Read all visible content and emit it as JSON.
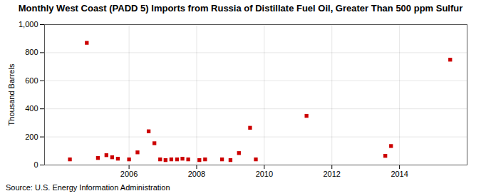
{
  "chart_data": {
    "type": "scatter",
    "title": "Monthly West Coast (PADD 5) Imports from Russia of Distillate Fuel Oil, Greater Than 500 ppm Sulfur",
    "ylabel": "Thousand Barrels",
    "annotations": [
      "Source: U.S. Energy Information Administration"
    ],
    "color": "#cc0000",
    "marker": "square",
    "grid": true,
    "xlim": [
      2003.5,
      2016.0
    ],
    "xticks": [
      2006,
      2008,
      2010,
      2012,
      2014
    ],
    "ylim": [
      0,
      1000
    ],
    "yticks": [
      0,
      200,
      400,
      600,
      800,
      {
        "value": 1000,
        "label": "1,000"
      }
    ],
    "x": [
      2004.25,
      2004.75,
      2005.08,
      2005.33,
      2005.5,
      2005.67,
      2006.0,
      2006.25,
      2006.58,
      2006.75,
      2006.92,
      2007.08,
      2007.25,
      2007.42,
      2007.58,
      2007.75,
      2008.08,
      2008.25,
      2008.75,
      2009.0,
      2009.25,
      2009.58,
      2009.75,
      2011.25,
      2013.58,
      2013.75,
      2015.5
    ],
    "values": [
      40,
      870,
      50,
      70,
      55,
      45,
      40,
      90,
      240,
      155,
      40,
      35,
      40,
      40,
      45,
      40,
      35,
      40,
      40,
      35,
      85,
      265,
      40,
      350,
      65,
      135,
      750
    ]
  }
}
